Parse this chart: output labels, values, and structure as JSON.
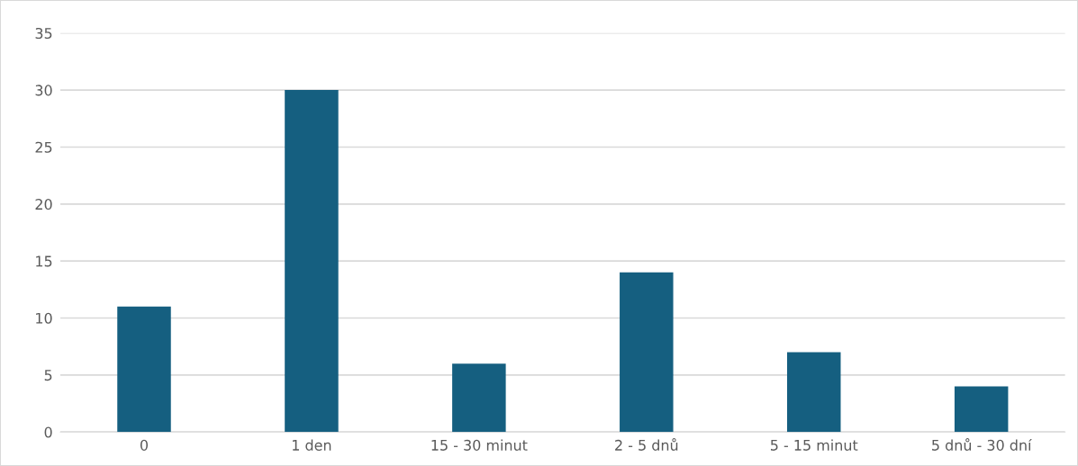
{
  "chart_data": {
    "type": "bar",
    "categories": [
      "0",
      "1 den",
      "15 - 30 minut",
      "2 - 5 dnů",
      "5 - 15 minut",
      "5 dnů - 30 dní"
    ],
    "values": [
      11,
      30,
      6,
      14,
      7,
      4
    ],
    "color": "#155f80",
    "ylim": [
      0,
      35
    ],
    "yticks": [
      0,
      5,
      10,
      15,
      20,
      25,
      30,
      35
    ],
    "grid": "y",
    "legend": false
  }
}
